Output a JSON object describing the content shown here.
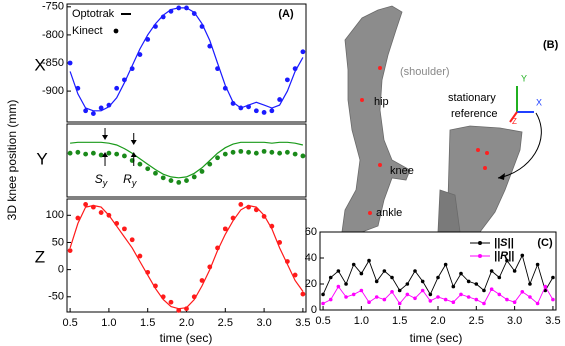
{
  "chart_data": [
    {
      "type": "line",
      "axis_letter": "X",
      "panel_label": "(A)",
      "legend": "upper left",
      "xlim": [
        0.46,
        3.54
      ],
      "ylim": [
        -955,
        -745
      ],
      "yticks": [
        -750,
        -800,
        -850,
        -900
      ],
      "x": [
        0.5,
        0.6,
        0.7,
        0.8,
        0.9,
        1.0,
        1.1,
        1.2,
        1.3,
        1.4,
        1.5,
        1.6,
        1.7,
        1.8,
        1.9,
        2.0,
        2.1,
        2.2,
        2.3,
        2.4,
        2.5,
        2.6,
        2.7,
        2.8,
        2.9,
        3.0,
        3.1,
        3.2,
        3.3,
        3.4,
        3.5
      ],
      "series": [
        {
          "name": "Optotrak",
          "style": "line",
          "color": "#1a1aff",
          "values": [
            -865,
            -905,
            -930,
            -935,
            -935,
            -928,
            -912,
            -885,
            -855,
            -825,
            -800,
            -780,
            -765,
            -755,
            -752,
            -752,
            -760,
            -780,
            -810,
            -850,
            -890,
            -920,
            -930,
            -925,
            -920,
            -925,
            -930,
            -925,
            -900,
            -865,
            -840
          ]
        },
        {
          "name": "Kinect",
          "style": "dots",
          "color": "#1a1aff",
          "values": [
            -850,
            -895,
            -935,
            -940,
            -930,
            -925,
            -895,
            -880,
            -860,
            -835,
            -808,
            -785,
            -768,
            -758,
            -752,
            -752,
            -762,
            -785,
            -820,
            -860,
            -895,
            -922,
            -930,
            -928,
            -935,
            -938,
            -935,
            -915,
            -880,
            -860,
            -830
          ]
        }
      ]
    },
    {
      "type": "line",
      "axis_letter": "Y",
      "ylabel": "3D knee position (mm)",
      "annotations": [
        {
          "text": "S",
          "subscript": "y"
        },
        {
          "text": "R",
          "subscript": "y"
        }
      ],
      "xlim": [
        0.46,
        3.54
      ],
      "ylim": [
        -40,
        40
      ],
      "x": [
        0.5,
        0.6,
        0.7,
        0.8,
        0.9,
        1.0,
        1.1,
        1.2,
        1.3,
        1.4,
        1.5,
        1.6,
        1.7,
        1.8,
        1.9,
        2.0,
        2.1,
        2.2,
        2.3,
        2.4,
        2.5,
        2.6,
        2.7,
        2.8,
        2.9,
        3.0,
        3.1,
        3.2,
        3.3,
        3.4,
        3.5
      ],
      "series": [
        {
          "style": "line",
          "color": "#1a9a1a",
          "values": [
            19,
            20,
            20,
            20,
            20,
            19,
            17,
            13,
            8,
            2,
            -4,
            -10,
            -15,
            -18,
            -19,
            -18,
            -14,
            -8,
            0,
            8,
            14,
            18,
            20,
            20,
            20,
            20,
            19,
            20,
            20,
            19,
            17
          ]
        },
        {
          "style": "dots",
          "color": "#1a8a1a",
          "values": [
            8,
            9,
            7,
            8,
            6,
            8,
            7,
            5,
            0,
            -4,
            -9,
            -14,
            -19,
            -22,
            -24,
            -22,
            -18,
            -12,
            -4,
            3,
            7,
            9,
            10,
            9,
            8,
            10,
            9,
            8,
            9,
            7,
            5
          ]
        }
      ]
    },
    {
      "type": "line",
      "axis_letter": "Z",
      "xlabel": "time (sec)",
      "xlim": [
        0.46,
        3.54
      ],
      "ylim": [
        -78,
        130
      ],
      "yticks": [
        100,
        50,
        0,
        -50
      ],
      "xticks": [
        0.5,
        {
          "value": 1,
          "label": "1.0"
        },
        1.5,
        {
          "value": 2,
          "label": "2.0"
        },
        2.5,
        {
          "value": 3,
          "label": "3.0"
        },
        3.5
      ],
      "x": [
        0.5,
        0.6,
        0.7,
        0.8,
        0.9,
        1.0,
        1.1,
        1.2,
        1.3,
        1.4,
        1.5,
        1.6,
        1.7,
        1.8,
        1.9,
        2.0,
        2.1,
        2.2,
        2.3,
        2.4,
        2.5,
        2.6,
        2.7,
        2.8,
        2.9,
        3.0,
        3.1,
        3.2,
        3.3,
        3.4,
        3.5
      ],
      "series": [
        {
          "style": "line",
          "color": "#ff1a1a",
          "values": [
            40,
            85,
            115,
            118,
            115,
            100,
            80,
            60,
            40,
            15,
            -10,
            -35,
            -55,
            -68,
            -72,
            -70,
            -55,
            -30,
            0,
            35,
            65,
            90,
            110,
            118,
            115,
            100,
            75,
            40,
            10,
            -20,
            -40
          ]
        },
        {
          "style": "dots",
          "color": "#ff1a1a",
          "values": [
            35,
            95,
            120,
            115,
            105,
            100,
            85,
            75,
            55,
            25,
            -5,
            -30,
            -50,
            -60,
            -75,
            -72,
            -50,
            -20,
            5,
            40,
            75,
            95,
            120,
            115,
            110,
            98,
            80,
            50,
            15,
            -10,
            -45
          ]
        }
      ]
    },
    {
      "type": "line",
      "panel_label": "(C)",
      "xlabel": "time (sec)",
      "legend": "upper right",
      "xlim": [
        0.46,
        3.54
      ],
      "ylim": [
        0,
        60
      ],
      "yticks": [
        0,
        20,
        40,
        60
      ],
      "xticks": [
        0.5,
        {
          "value": 1,
          "label": "1.0"
        },
        1.5,
        {
          "value": 2,
          "label": "2.0"
        },
        2.5,
        {
          "value": 3,
          "label": "3.0"
        },
        3.5
      ],
      "x": [
        0.5,
        0.6,
        0.7,
        0.8,
        0.9,
        1.0,
        1.1,
        1.2,
        1.3,
        1.4,
        1.5,
        1.6,
        1.7,
        1.8,
        1.9,
        2.0,
        2.1,
        2.2,
        2.3,
        2.4,
        2.5,
        2.6,
        2.7,
        2.8,
        2.9,
        3.0,
        3.1,
        3.2,
        3.3,
        3.4,
        3.5
      ],
      "series": [
        {
          "name": "||S||",
          "style": "line-markers",
          "color": "#000000",
          "values": [
            12,
            25,
            30,
            20,
            35,
            28,
            38,
            22,
            30,
            25,
            15,
            20,
            30,
            22,
            12,
            25,
            35,
            18,
            28,
            22,
            20,
            15,
            30,
            25,
            38,
            30,
            42,
            20,
            35,
            15,
            25
          ]
        },
        {
          "name": "||R||",
          "style": "line-markers",
          "color": "#ff00ff",
          "values": [
            5,
            8,
            18,
            10,
            12,
            15,
            6,
            10,
            8,
            14,
            5,
            12,
            9,
            15,
            7,
            10,
            8,
            6,
            12,
            10,
            8,
            5,
            16,
            12,
            8,
            6,
            14,
            10,
            5,
            18,
            8
          ]
        }
      ]
    }
  ],
  "panel_b": {
    "label": "(B)",
    "parts": [
      "(shoulder)",
      "hip",
      "knee",
      "ankle"
    ],
    "reference": [
      "stationary",
      "reference"
    ],
    "axes": [
      "Y",
      "X",
      "Z"
    ]
  }
}
